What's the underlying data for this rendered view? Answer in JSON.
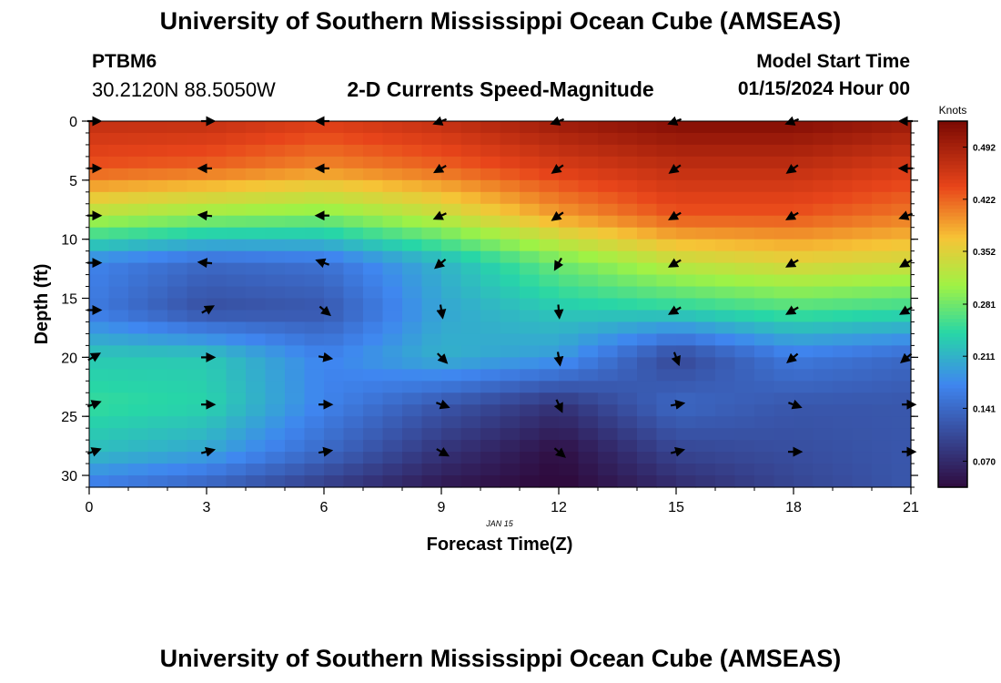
{
  "header": {
    "title": "University of Southern Mississippi Ocean Cube (AMSEAS)",
    "station": "PTBM6",
    "coords": "30.2120N  88.5050W",
    "plot_title": "2-D Currents Speed-Magnitude",
    "start_label": "Model Start Time",
    "start_value": "01/15/2024 Hour 00"
  },
  "footer": {
    "title": "University of Southern Mississippi Ocean Cube (AMSEAS)"
  },
  "colors": {
    "low": "#2f0b3e",
    "mid_low": "#3f86f0",
    "mid": "#27d6a7",
    "mid_high": "#9ff245",
    "high_mid": "#f6c436",
    "high": "#e8451a",
    "max": "#7a0903"
  },
  "chart_data": {
    "type": "heatmap",
    "title": "2-D Currents Speed-Magnitude",
    "xlabel": "Forecast Time(Z)",
    "ylabel": "Depth (ft)",
    "x_sublabel": "JAN 15",
    "xlim": [
      0,
      21
    ],
    "ylim": [
      31,
      0
    ],
    "x_ticks": [
      0,
      3,
      6,
      9,
      12,
      15,
      18,
      21
    ],
    "y_ticks": [
      0,
      5,
      10,
      15,
      20,
      25,
      30
    ],
    "colorbar": {
      "title": "Knots",
      "min": 0.035,
      "max": 0.527,
      "ticks": [
        0.07,
        0.141,
        0.211,
        0.281,
        0.352,
        0.422,
        0.492
      ],
      "tick_labels": [
        "0.070",
        "0.141",
        "0.211",
        "0.281",
        "0.352",
        "0.422",
        "0.492"
      ]
    },
    "times": [
      0,
      3,
      6,
      9,
      12,
      15,
      18,
      21
    ],
    "depths": [
      0,
      4,
      8,
      12,
      16,
      20,
      24,
      28,
      31
    ],
    "speeds": [
      [
        0.47,
        0.47,
        0.45,
        0.47,
        0.5,
        0.52,
        0.52,
        0.5
      ],
      [
        0.43,
        0.42,
        0.4,
        0.42,
        0.45,
        0.47,
        0.47,
        0.45
      ],
      [
        0.32,
        0.3,
        0.29,
        0.33,
        0.39,
        0.43,
        0.43,
        0.41
      ],
      [
        0.17,
        0.14,
        0.15,
        0.21,
        0.28,
        0.33,
        0.35,
        0.34
      ],
      [
        0.16,
        0.11,
        0.12,
        0.2,
        0.23,
        0.24,
        0.26,
        0.25
      ],
      [
        0.23,
        0.23,
        0.17,
        0.21,
        0.19,
        0.1,
        0.16,
        0.14
      ],
      [
        0.25,
        0.24,
        0.17,
        0.12,
        0.08,
        0.14,
        0.12,
        0.12
      ],
      [
        0.22,
        0.2,
        0.14,
        0.08,
        0.04,
        0.1,
        0.11,
        0.12
      ],
      [
        0.16,
        0.13,
        0.09,
        0.05,
        0.03,
        0.07,
        0.1,
        0.12
      ]
    ],
    "vectors": {
      "depths": [
        0,
        4,
        8,
        12,
        16,
        20,
        24,
        28
      ],
      "directions_deg": [
        [
          0,
          0,
          180,
          200,
          200,
          200,
          200,
          180
        ],
        [
          0,
          180,
          180,
          210,
          215,
          215,
          215,
          180
        ],
        [
          0,
          175,
          180,
          205,
          215,
          210,
          210,
          200
        ],
        [
          0,
          175,
          160,
          220,
          240,
          210,
          210,
          210
        ],
        [
          0,
          30,
          -40,
          -80,
          -85,
          210,
          210,
          210
        ],
        [
          30,
          0,
          -10,
          -45,
          -80,
          -70,
          220,
          220
        ],
        [
          20,
          0,
          0,
          -20,
          -65,
          10,
          -20,
          0
        ],
        [
          20,
          15,
          10,
          -30,
          -40,
          15,
          0,
          0
        ]
      ]
    }
  }
}
